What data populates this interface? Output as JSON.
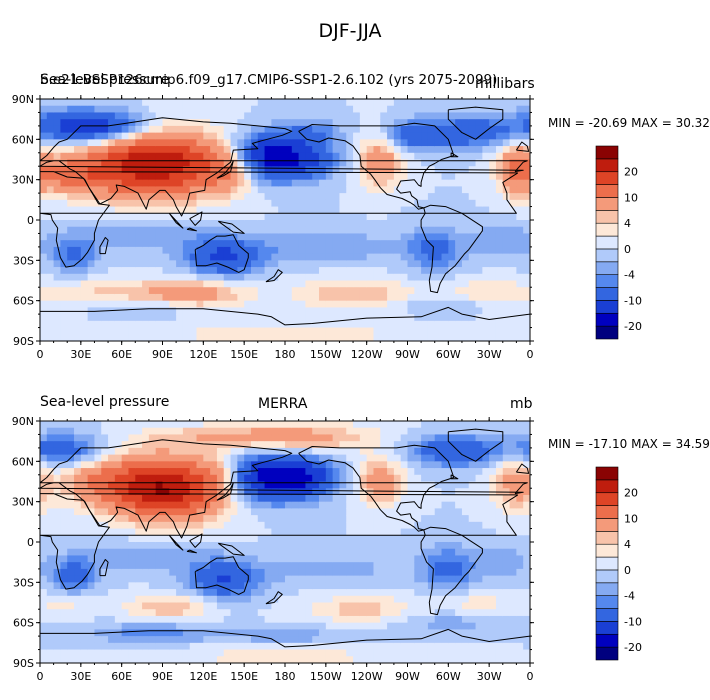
{
  "title": "DJF-JJA",
  "levels": [
    -20,
    -15,
    -10,
    -6,
    -4,
    -2,
    0,
    2,
    4,
    6,
    10,
    15,
    20,
    25
  ],
  "level_labels": [
    "20",
    "10",
    "4",
    "0",
    "-4",
    "-10",
    "-20"
  ],
  "colors": [
    "#00007f",
    "#0000bf",
    "#1a3fd4",
    "#3366e0",
    "#5588ee",
    "#85aaf2",
    "#b0cafa",
    "#dde8ff",
    "#fde8d8",
    "#f8c3aa",
    "#f49a7a",
    "#ec6e4c",
    "#de4426",
    "#bf1d0e",
    "#8a0303"
  ],
  "lat_labels": [
    "90N",
    "60N",
    "30N",
    "0",
    "30S",
    "60S",
    "90S"
  ],
  "lon_labels": [
    "0",
    "30E",
    "60E",
    "90E",
    "120E",
    "150E",
    "180",
    "150W",
    "120W",
    "90W",
    "60W",
    "30W",
    "0"
  ],
  "panels": [
    {
      "left_title": "Sea-level pressure",
      "center_title": "b.e21.BSSP126cmip6.f09_g17.CMIP6-SSP1-2.6.102 (yrs 2075-2099)",
      "units": "millibars",
      "min_label": "MIN =",
      "min": "-20.69",
      "max_label": "MAX =",
      "max": "30.32"
    },
    {
      "left_title": "Sea-level pressure",
      "center_title": "MERRA",
      "units": "mb",
      "min_label": "MIN =",
      "min": "-17.10",
      "max_label": "MAX =",
      "max": "34.59"
    }
  ]
}
